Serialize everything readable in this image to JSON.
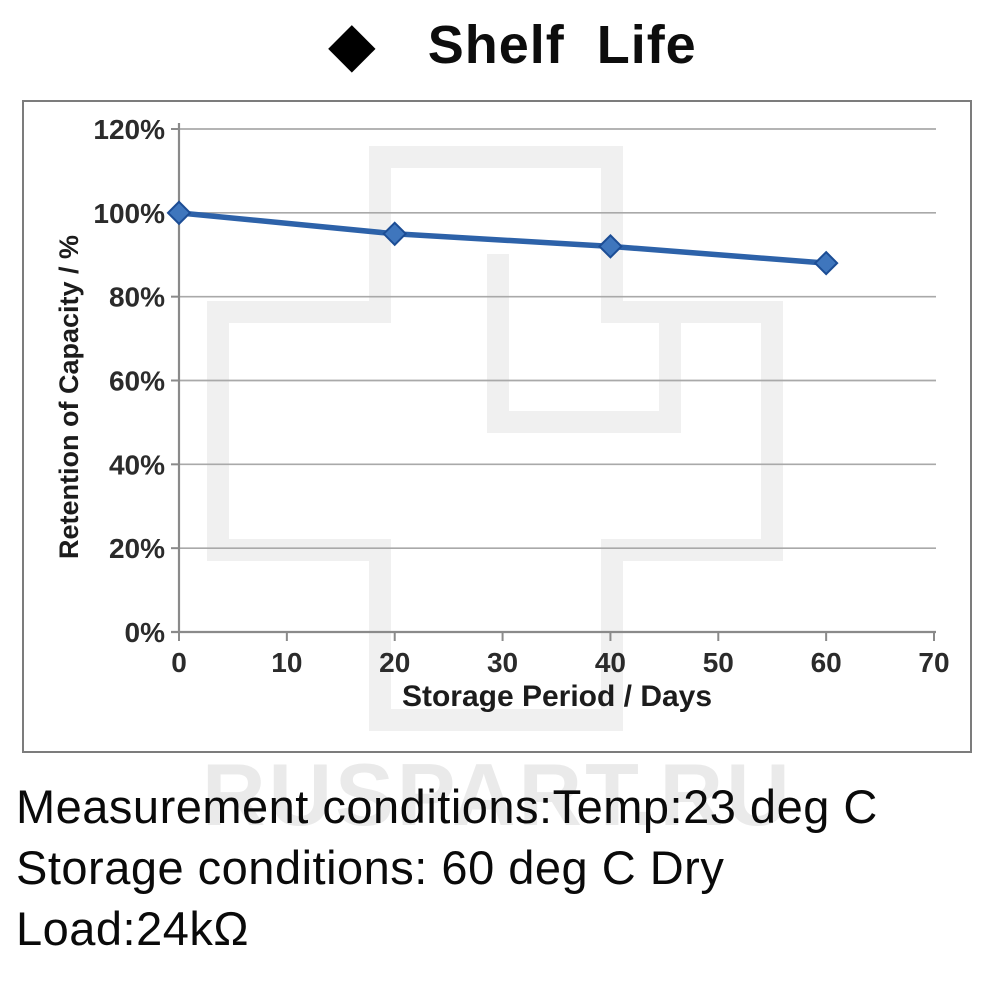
{
  "title": {
    "marker_glyph": "◆",
    "text": "Shelf  Life"
  },
  "chart_data": {
    "type": "line",
    "series_name": "Shelf Life",
    "x": [
      0,
      20,
      40,
      60
    ],
    "values": [
      100,
      95,
      92,
      88
    ],
    "xlabel": "Storage Period / Days",
    "ylabel": "Retention of Capacity / %",
    "x_ticks": [
      0,
      10,
      20,
      30,
      40,
      50,
      60,
      70
    ],
    "y_tick_values": [
      0,
      20,
      40,
      60,
      80,
      100,
      120
    ],
    "y_ticks": [
      "0%",
      "20%",
      "40%",
      "60%",
      "80%",
      "100%",
      "120%"
    ],
    "xlim": [
      0,
      70
    ],
    "ylim": [
      0,
      120
    ],
    "grid": true,
    "legend": "none",
    "marker": "diamond",
    "colors": {
      "line": "#2d62a9",
      "marker_fill": "#3f76bd",
      "marker_stroke": "#1c4d95",
      "grid": "#a9a9a9",
      "axis": "#8a8a8a"
    }
  },
  "watermark": {
    "text": "RUSPART.RU",
    "color": "#eaeaea"
  },
  "footer": {
    "lines": [
      "Measurement conditions:Temp:23 deg C",
      "Storage conditions: 60 deg C Dry",
      "Load:24kΩ"
    ]
  }
}
